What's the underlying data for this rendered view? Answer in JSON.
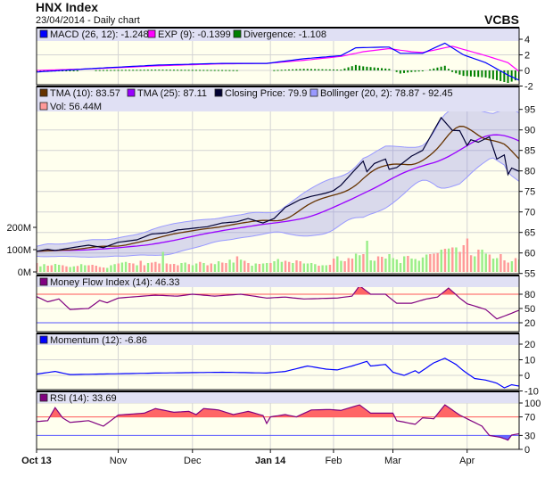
{
  "header": {
    "title": "HNX Index",
    "subtitle": "23/04/2014 - Daily chart",
    "brand": "VCBS"
  },
  "colors": {
    "panel_bg": "#ffffee",
    "legend_bg": "#e0e0f4",
    "grid": "#d4d4d4",
    "up": "#99ee88",
    "down": "#ff9999",
    "red_line": "#ff5555",
    "blue_line": "#5555ff"
  },
  "chart_data": {
    "type": "line",
    "x_unit": "trading-day index",
    "x_ticks": [
      {
        "i": 0,
        "label": "Oct 13",
        "bold": true
      },
      {
        "i": 22,
        "label": "Nov"
      },
      {
        "i": 42,
        "label": "Dec"
      },
      {
        "i": 63,
        "label": "Jan 14",
        "bold": true
      },
      {
        "i": 80,
        "label": "Feb"
      },
      {
        "i": 96,
        "label": "Mar"
      },
      {
        "i": 116,
        "label": "Apr"
      }
    ],
    "macd_panel": {
      "legend": [
        {
          "label": "MACD (26, 12): -1.248",
          "color": "#0000ff"
        },
        {
          "label": "EXP (9): -0.1399",
          "color": "#ff00ff"
        },
        {
          "label": "Divergence: -1.108",
          "color": "#008000"
        }
      ],
      "yticks": [
        4,
        2,
        0,
        -2
      ],
      "macd": [
        [
          0,
          -0.2
        ],
        [
          17,
          0.3
        ],
        [
          33,
          0.7
        ],
        [
          50,
          0.9
        ],
        [
          62,
          0.9
        ],
        [
          72,
          1.5
        ],
        [
          82,
          1.9
        ],
        [
          86,
          2.9
        ],
        [
          95,
          3.0
        ],
        [
          98,
          2.2
        ],
        [
          104,
          2.2
        ],
        [
          110,
          3.5
        ],
        [
          115,
          2.0
        ],
        [
          121,
          1.0
        ],
        [
          127,
          -0.6
        ],
        [
          130,
          -1.25
        ]
      ],
      "exp": [
        [
          0,
          0.0
        ],
        [
          17,
          0.25
        ],
        [
          33,
          0.6
        ],
        [
          50,
          0.85
        ],
        [
          62,
          0.9
        ],
        [
          72,
          1.3
        ],
        [
          82,
          1.8
        ],
        [
          88,
          2.4
        ],
        [
          95,
          2.8
        ],
        [
          101,
          2.4
        ],
        [
          104,
          2.3
        ],
        [
          112,
          3.1
        ],
        [
          121,
          1.9
        ],
        [
          127,
          1.0
        ],
        [
          130,
          -0.14
        ]
      ]
    },
    "price_panel": {
      "legend": [
        {
          "label": "TMA (10): 83.57",
          "color": "#663300"
        },
        {
          "label": "TMA (25): 87.11",
          "color": "#9900ff"
        },
        {
          "label": "Closing Price: 79.9",
          "color": "#000033"
        },
        {
          "label": "Bollinger (20, 2): 78.87 - 92.45",
          "color": "#9999ff"
        },
        {
          "label": "Vol: 56.44M",
          "color": "#ff9999"
        }
      ],
      "yticks": [
        95,
        90,
        85,
        80,
        75,
        70,
        65,
        60,
        55
      ],
      "vol_ticks": [
        {
          "v": 0,
          "label": "0M"
        },
        {
          "v": 100,
          "label": "100M"
        },
        {
          "v": 200,
          "label": "200M"
        }
      ],
      "close": [
        [
          0,
          60.4
        ],
        [
          3,
          60.9
        ],
        [
          5,
          60.6
        ],
        [
          9,
          61.2
        ],
        [
          14,
          61.9
        ],
        [
          18,
          61.3
        ],
        [
          22,
          62.6
        ],
        [
          27,
          63.2
        ],
        [
          31,
          64.6
        ],
        [
          35,
          64.9
        ],
        [
          38,
          65.6
        ],
        [
          42,
          66
        ],
        [
          46,
          66.4
        ],
        [
          50,
          67.3
        ],
        [
          54,
          67.6
        ],
        [
          57,
          68.4
        ],
        [
          61,
          67.3
        ],
        [
          64,
          68.4
        ],
        [
          67,
          71.1
        ],
        [
          71,
          73
        ],
        [
          74,
          73.8
        ],
        [
          78,
          74.6
        ],
        [
          80,
          75.2
        ],
        [
          82,
          76.5
        ],
        [
          86,
          80.5
        ],
        [
          88,
          82.4
        ],
        [
          89,
          79.8
        ],
        [
          91,
          81.8
        ],
        [
          94,
          82.9
        ],
        [
          95,
          80.4
        ],
        [
          97,
          80.8
        ],
        [
          101,
          83.6
        ],
        [
          104,
          85
        ],
        [
          107,
          89.8
        ],
        [
          109,
          93
        ],
        [
          112,
          89.9
        ],
        [
          114,
          89.8
        ],
        [
          116,
          86.2
        ],
        [
          117,
          87.6
        ],
        [
          119,
          87
        ],
        [
          122,
          88.3
        ],
        [
          124,
          82.9
        ],
        [
          126,
          83.9
        ],
        [
          127,
          79.1
        ],
        [
          128,
          80.7
        ],
        [
          130,
          79.9
        ]
      ],
      "volume_M": [
        40,
        25,
        35,
        28,
        30,
        36,
        32,
        30,
        25,
        22,
        25,
        27,
        35,
        30,
        30,
        32,
        28,
        22,
        20,
        18,
        30,
        35,
        38,
        42,
        45,
        40,
        38,
        30,
        50,
        30,
        40,
        42,
        45,
        38,
        90,
        38,
        35,
        36,
        30,
        40,
        42,
        35,
        30,
        38,
        45,
        40,
        30,
        38,
        35,
        48,
        42,
        40,
        55,
        42,
        70,
        55,
        50,
        40,
        28,
        38,
        36,
        38,
        40,
        40,
        48,
        58,
        45,
        50,
        45,
        40,
        52,
        48,
        38,
        38,
        40,
        35,
        28,
        30,
        30,
        32,
        60,
        70,
        50,
        48,
        62,
        60,
        82,
        75,
        80,
        140,
        52,
        50,
        70,
        68,
        60,
        80,
        62,
        56,
        40,
        70,
        72,
        60,
        58,
        50,
        65,
        78,
        80,
        82,
        85,
        100,
        104,
        105,
        110,
        110,
        90,
        120,
        150,
        75,
        70,
        100,
        100,
        82,
        78,
        60,
        62,
        80,
        52,
        42,
        48,
        62,
        56
      ],
      "volume_dir": "duudduudduuduuddddduuuduudduddudddudddduuduududduudduududduuduuduuuddudduuuuduudduuddduuduuudduuuuuuduuuuudddudududddduduuduudddudu"
    },
    "mfi_panel": {
      "legend": [
        {
          "label": "Money Flow Index (14): 46.33",
          "color": "#800080"
        }
      ],
      "yticks": [
        {
          "v": 80,
          "color": "#ff5555"
        },
        {
          "v": 50,
          "color": "#111111"
        },
        {
          "v": 20,
          "color": "#5555ff"
        }
      ],
      "values": [
        [
          0,
          75
        ],
        [
          3,
          64
        ],
        [
          6,
          70
        ],
        [
          9,
          48
        ],
        [
          14,
          50
        ],
        [
          17,
          67
        ],
        [
          19,
          62
        ],
        [
          22,
          72
        ],
        [
          32,
          78
        ],
        [
          38,
          76
        ],
        [
          42,
          80
        ],
        [
          48,
          76
        ],
        [
          55,
          80
        ],
        [
          62,
          72
        ],
        [
          67,
          74
        ],
        [
          72,
          70
        ],
        [
          81,
          72
        ],
        [
          85,
          76
        ],
        [
          87,
          98
        ],
        [
          90,
          80
        ],
        [
          94,
          80
        ],
        [
          97,
          61
        ],
        [
          101,
          61
        ],
        [
          105,
          70
        ],
        [
          108,
          74
        ],
        [
          111,
          93
        ],
        [
          114,
          72
        ],
        [
          116,
          60
        ],
        [
          121,
          48
        ],
        [
          124,
          28
        ],
        [
          127,
          37
        ],
        [
          130,
          46.33
        ]
      ]
    },
    "momentum_panel": {
      "legend": [
        {
          "label": "Momentum (12): -6.86",
          "color": "#0000ff"
        }
      ],
      "yticks": [
        20,
        10,
        0,
        -10
      ],
      "values": [
        [
          0,
          0.8
        ],
        [
          5,
          2.5
        ],
        [
          9,
          0.5
        ],
        [
          21,
          1
        ],
        [
          33,
          1.5
        ],
        [
          50,
          2
        ],
        [
          62,
          1.5
        ],
        [
          67,
          2.5
        ],
        [
          73,
          6
        ],
        [
          78,
          4
        ],
        [
          81,
          3.5
        ],
        [
          85,
          6
        ],
        [
          89,
          9
        ],
        [
          90,
          6
        ],
        [
          94,
          7
        ],
        [
          96,
          2
        ],
        [
          99,
          0
        ],
        [
          102,
          3
        ],
        [
          103,
          1.5
        ],
        [
          107,
          8
        ],
        [
          110,
          11
        ],
        [
          113,
          7
        ],
        [
          115,
          3
        ],
        [
          118,
          -2
        ],
        [
          121,
          -3
        ],
        [
          124,
          -5
        ],
        [
          126,
          -8
        ],
        [
          128,
          -6
        ],
        [
          130,
          -6.86
        ]
      ]
    },
    "rsi_panel": {
      "legend": [
        {
          "label": "RSI (14): 33.69",
          "color": "#800080"
        }
      ],
      "yticks": [
        {
          "v": 100,
          "color": "#111111"
        },
        {
          "v": 70,
          "color": "#ff5555"
        },
        {
          "v": 30,
          "color": "#5555ff"
        },
        {
          "v": 0,
          "color": "#111111"
        }
      ],
      "values": [
        [
          0,
          60
        ],
        [
          3,
          62
        ],
        [
          5,
          90
        ],
        [
          7,
          68
        ],
        [
          9,
          58
        ],
        [
          14,
          62
        ],
        [
          18,
          50
        ],
        [
          21,
          68
        ],
        [
          22,
          74
        ],
        [
          29,
          78
        ],
        [
          32,
          88
        ],
        [
          37,
          80
        ],
        [
          41,
          82
        ],
        [
          43,
          75
        ],
        [
          45,
          88
        ],
        [
          49,
          85
        ],
        [
          53,
          75
        ],
        [
          57,
          82
        ],
        [
          61,
          73
        ],
        [
          62,
          56
        ],
        [
          63,
          70
        ],
        [
          67,
          75
        ],
        [
          70,
          70
        ],
        [
          74,
          85
        ],
        [
          79,
          86
        ],
        [
          82,
          84
        ],
        [
          87,
          96
        ],
        [
          90,
          78
        ],
        [
          96,
          78
        ],
        [
          97,
          62
        ],
        [
          102,
          54
        ],
        [
          104,
          68
        ],
        [
          107,
          66
        ],
        [
          110,
          96
        ],
        [
          114,
          74
        ],
        [
          118,
          58
        ],
        [
          120,
          50
        ],
        [
          122,
          30
        ],
        [
          125,
          26
        ],
        [
          127,
          20
        ],
        [
          128,
          31
        ],
        [
          130,
          33.69
        ]
      ]
    }
  }
}
